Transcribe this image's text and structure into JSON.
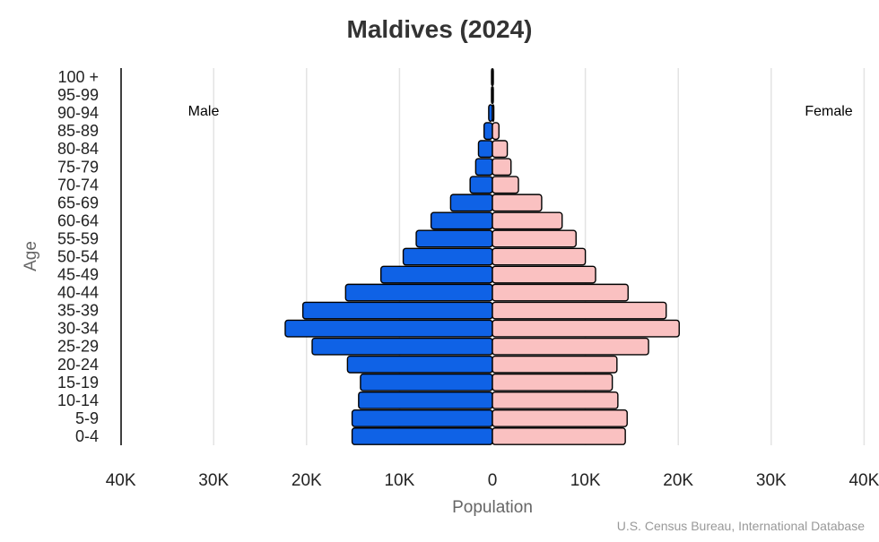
{
  "chart_data": {
    "type": "bar",
    "orientation": "horizontal-pyramid",
    "title": "Maldives (2024)",
    "xlabel": "Population",
    "ylabel": "Age",
    "source": "U.S. Census Bureau, International Database",
    "xlim": [
      -40000,
      40000
    ],
    "x_ticks": [
      -40000,
      -30000,
      -20000,
      -10000,
      0,
      10000,
      20000,
      30000,
      40000
    ],
    "x_tick_labels": [
      "40K",
      "30K",
      "20K",
      "10K",
      "0",
      "10K",
      "20K",
      "30K",
      "40K"
    ],
    "grid": true,
    "categories": [
      "100 +",
      "95-99",
      "90-94",
      "85-89",
      "80-84",
      "75-79",
      "70-74",
      "65-69",
      "60-64",
      "55-59",
      "50-54",
      "45-49",
      "40-44",
      "35-39",
      "30-34",
      "25-29",
      "20-24",
      "15-19",
      "10-14",
      "5-9",
      "0-4"
    ],
    "series": [
      {
        "name": "Male",
        "color": "#0f62e6",
        "side": "left",
        "values": [
          50,
          100,
          400,
          900,
          1500,
          1800,
          2400,
          4500,
          6600,
          8200,
          9600,
          12000,
          15800,
          20400,
          22300,
          19400,
          15600,
          14200,
          14400,
          15100,
          15100
        ]
      },
      {
        "name": "Female",
        "color": "#fac1c1",
        "side": "right",
        "values": [
          30,
          80,
          150,
          700,
          1600,
          2000,
          2800,
          5300,
          7500,
          9000,
          10000,
          11100,
          14600,
          18700,
          20100,
          16800,
          13400,
          12900,
          13500,
          14500,
          14300
        ]
      }
    ]
  }
}
